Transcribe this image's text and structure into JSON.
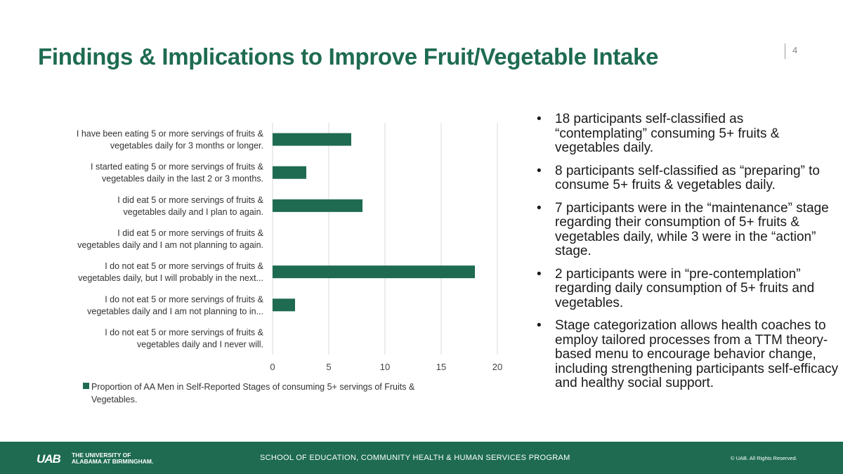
{
  "slide": {
    "title": "Findings & Implications to Improve Fruit/Vegetable Intake",
    "page_number": "4"
  },
  "chart_data": {
    "type": "bar",
    "orientation": "horizontal",
    "categories": [
      [
        "I have been eating 5 or more servings of fruits &",
        "vegetables daily for 3 months or longer."
      ],
      [
        "I started eating 5 or more servings of fruits &",
        "vegetables daily in the last 2 or 3 months."
      ],
      [
        "I did eat 5 or more servings of fruits &",
        "vegetables daily and I plan to again."
      ],
      [
        "I did eat 5 or more servings of fruits &",
        "vegetables daily and I am not planning to again."
      ],
      [
        "I do not eat 5 or more servings of fruits &",
        "vegetables daily, but I will probably in the next..."
      ],
      [
        "I do not eat 5 or more servings of fruits &",
        "vegetables daily and I am not planning to in..."
      ],
      [
        "I do not eat 5 or more servings of fruits &",
        "vegetables daily and I never will."
      ]
    ],
    "series": [
      {
        "name": "Proportion of AA Men in Self-Reported Stages of consuming 5+ servings of Fruits & Vegetables.",
        "values": [
          7,
          3,
          8,
          0,
          18,
          2,
          0
        ]
      }
    ],
    "xlim": [
      0,
      20
    ],
    "xticks": [
      "0",
      "5",
      "10",
      "15",
      "20"
    ],
    "legend_lines": [
      "Proportion of AA Men in Self-Reported Stages of consuming 5+ servings of Fruits &",
      "Vegetables."
    ],
    "bar_color": "#1e6b52",
    "grid_color": "#d9d9d9",
    "grid": true,
    "legend_position": "bottom"
  },
  "bullets": [
    "18 participants self-classified as “contemplating”  consuming 5+ fruits & vegetables daily.",
    "8 participants self-classified as “preparing” to consume 5+ fruits & vegetables daily.",
    "7 participants were in the “maintenance” stage regarding their consumption of 5+ fruits & vegetables daily, while 3 were in the “action” stage.",
    "2 participants were in “pre-contemplation” regarding daily consumption of 5+ fruits and vegetables.",
    "Stage categorization allows health coaches to employ tailored processes from a TTM theory-based menu to encourage behavior change, including strengthening participants self-efficacy and healthy social support."
  ],
  "bullet_symbol": "•",
  "footer": {
    "logo_mark": "UAB",
    "logo_line1": "THE UNIVERSITY OF",
    "logo_line2": "ALABAMA AT BIRMINGHAM.",
    "program": "SCHOOL OF EDUCATION, COMMUNITY HEALTH & HUMAN SERVICES PROGRAM",
    "copyright": "© UAB. All Rights Reserved."
  },
  "colors": {
    "brand_green": "#1e6b52"
  }
}
